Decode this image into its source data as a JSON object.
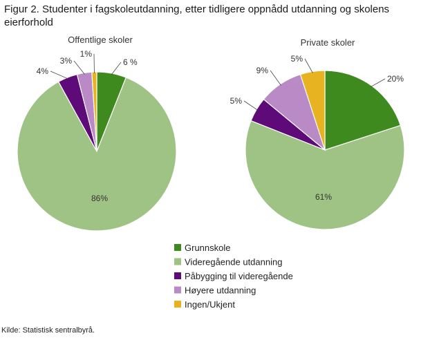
{
  "figure": {
    "title": "Figur 2. Studenter i fagskoleutdanning, etter tidligere oppnådd utdanning og skolens eierforhold",
    "source": "Kilde: Statistisk sentralbyrå."
  },
  "chart_data": [
    {
      "type": "pie",
      "title": "Offentlige  skoler",
      "categories": [
        "Grunnskole",
        "Videregående utdanning",
        "Påbygging til videregående",
        "Høyere utdanning",
        "Ingen/Ukjent"
      ],
      "values": [
        6,
        86,
        4,
        3,
        1
      ],
      "labels": [
        "6 %",
        "86%",
        "4%",
        "3%",
        "1%"
      ],
      "colors": [
        "#3f8a1e",
        "#9fc384",
        "#5e0a78",
        "#b98ac6",
        "#e8b320"
      ]
    },
    {
      "type": "pie",
      "title": "Private skoler",
      "categories": [
        "Grunnskole",
        "Videregående utdanning",
        "Påbygging til videregående",
        "Høyere utdanning",
        "Ingen/Ukjent"
      ],
      "values": [
        20,
        61,
        5,
        9,
        5
      ],
      "labels": [
        "20%",
        "61%",
        "5%",
        "9%",
        "5%"
      ],
      "colors": [
        "#3f8a1e",
        "#9fc384",
        "#5e0a78",
        "#b98ac6",
        "#e8b320"
      ]
    }
  ],
  "legend": {
    "placement": "bottom-center",
    "items": [
      {
        "label": "Grunnskole",
        "color": "#3f8a1e"
      },
      {
        "label": "Videregående utdanning",
        "color": "#9fc384"
      },
      {
        "label": "Påbygging til videregående",
        "color": "#5e0a78"
      },
      {
        "label": "Høyere utdanning",
        "color": "#b98ac6"
      },
      {
        "label": "Ingen/Ukjent",
        "color": "#e8b320"
      }
    ]
  }
}
